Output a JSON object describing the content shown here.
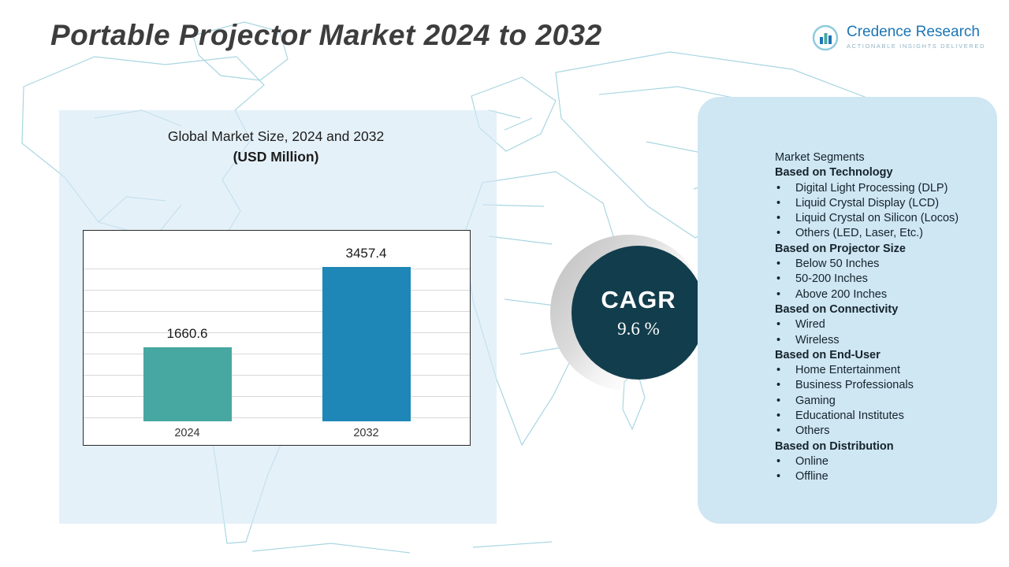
{
  "header": {
    "title": "Portable Projector Market 2024 to 2032",
    "logo": {
      "name": "Credence Research",
      "tagline": "Actionable Insights Delivered"
    }
  },
  "chart_panel": {
    "title_line1": "Global Market Size, 2024 and 2032",
    "title_line2": "(USD Million)"
  },
  "chart_data": {
    "type": "bar",
    "categories": [
      "2024",
      "2032"
    ],
    "values": [
      1660.6,
      3457.4
    ],
    "title": "Global Market Size, 2024 and 2032 (USD Million)",
    "xlabel": "",
    "ylabel": "",
    "ylim": [
      0,
      3700
    ],
    "grid": true,
    "legend": false,
    "bar_colors": [
      "#47a7a1",
      "#1e87b7"
    ]
  },
  "cagr": {
    "label": "CAGR",
    "value": "9.6 %"
  },
  "segments": {
    "title": "Market Segments",
    "groups": [
      {
        "heading": "Based on Technology",
        "items": [
          "Digital Light Processing (DLP)",
          "Liquid Crystal Display (LCD)",
          "Liquid Crystal on Silicon (Locos)",
          "Others (LED, Laser, Etc.)"
        ]
      },
      {
        "heading": "Based on Projector Size",
        "items": [
          "Below 50 Inches",
          "50-200 Inches",
          "Above 200 Inches"
        ]
      },
      {
        "heading": "Based on Connectivity",
        "items": [
          "Wired",
          "Wireless"
        ]
      },
      {
        "heading": "Based on End-User",
        "items": [
          "Home Entertainment",
          "Business Professionals",
          "Gaming",
          "Educational Institutes",
          "Others"
        ]
      },
      {
        "heading": "Based on Distribution",
        "items": [
          "Online",
          "Offline"
        ]
      }
    ]
  },
  "colors": {
    "bar_2024": "#47a7a1",
    "bar_2032": "#1e87b7",
    "cagr_circle": "#123d4c",
    "panel_blue": "#cfe6f3",
    "map_line": "#a9d6e2",
    "brand_blue": "#1c76b4"
  }
}
